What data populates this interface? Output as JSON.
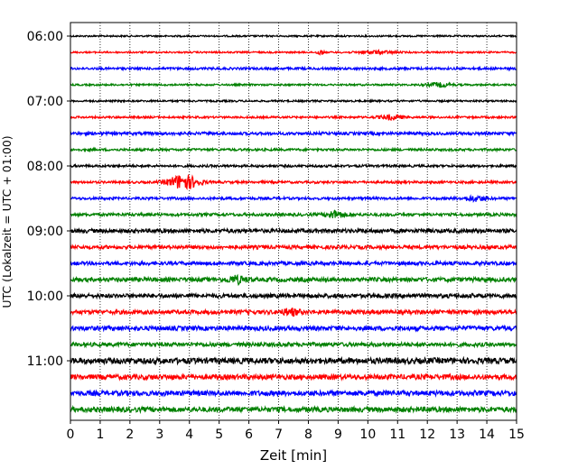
{
  "chart_data": {
    "type": "line",
    "title": "",
    "xlabel": "Zeit  [min]",
    "ylabel": "UTC (Lokalzeit = UTC + 01:00)",
    "xlim": [
      0,
      15
    ],
    "x_ticks": [
      0,
      1,
      2,
      3,
      4,
      5,
      6,
      7,
      8,
      9,
      10,
      11,
      12,
      13,
      14,
      15
    ],
    "y_ticks": [
      "06:00",
      "07:00",
      "08:00",
      "09:00",
      "10:00",
      "11:00"
    ],
    "row_interval_minutes": 15,
    "rows": [
      {
        "time": "06:00",
        "color": "#000000",
        "noise": 0.9
      },
      {
        "time": "06:15",
        "color": "#ff0000",
        "noise": 0.9,
        "events": [
          {
            "at": 8.4,
            "amp": 3,
            "width": 0.1
          },
          {
            "at": 10.3,
            "amp": 1.6,
            "width": 0.6
          }
        ]
      },
      {
        "time": "06:30",
        "color": "#0000ff",
        "noise": 1.3
      },
      {
        "time": "06:45",
        "color": "#008000",
        "noise": 1.0,
        "events": [
          {
            "at": 12.4,
            "amp": 2.2,
            "width": 0.4
          }
        ]
      },
      {
        "time": "07:00",
        "color": "#000000",
        "noise": 1.0
      },
      {
        "time": "07:15",
        "color": "#ff0000",
        "noise": 1.1,
        "events": [
          {
            "at": 10.8,
            "amp": 2.5,
            "width": 0.4
          }
        ]
      },
      {
        "time": "07:30",
        "color": "#0000ff",
        "noise": 1.6
      },
      {
        "time": "07:45",
        "color": "#008000",
        "noise": 1.3
      },
      {
        "time": "08:00",
        "color": "#000000",
        "noise": 1.3
      },
      {
        "time": "08:15",
        "color": "#ff0000",
        "noise": 1.3,
        "events": [
          {
            "at": 3.8,
            "amp": 8,
            "width": 0.5
          }
        ]
      },
      {
        "time": "08:30",
        "color": "#0000ff",
        "noise": 1.4,
        "events": [
          {
            "at": 13.6,
            "amp": 2.5,
            "width": 0.4
          }
        ]
      },
      {
        "time": "08:45",
        "color": "#008000",
        "noise": 1.6,
        "events": [
          {
            "at": 8.9,
            "amp": 4,
            "width": 0.3
          }
        ]
      },
      {
        "time": "09:00",
        "color": "#000000",
        "noise": 2.2
      },
      {
        "time": "09:15",
        "color": "#ff0000",
        "noise": 2.0
      },
      {
        "time": "09:30",
        "color": "#0000ff",
        "noise": 2.0
      },
      {
        "time": "09:45",
        "color": "#008000",
        "noise": 2.3,
        "events": [
          {
            "at": 5.6,
            "amp": 3.5,
            "width": 0.3
          }
        ]
      },
      {
        "time": "10:00",
        "color": "#000000",
        "noise": 2.3
      },
      {
        "time": "10:15",
        "color": "#ff0000",
        "noise": 2.3,
        "events": [
          {
            "at": 7.4,
            "amp": 3,
            "width": 0.3
          }
        ]
      },
      {
        "time": "10:30",
        "color": "#0000ff",
        "noise": 2.5
      },
      {
        "time": "10:45",
        "color": "#008000",
        "noise": 2.2
      },
      {
        "time": "11:00",
        "color": "#000000",
        "noise": 3.2
      },
      {
        "time": "11:15",
        "color": "#ff0000",
        "noise": 2.8
      },
      {
        "time": "11:30",
        "color": "#0000ff",
        "noise": 2.8
      },
      {
        "time": "11:45",
        "color": "#008000",
        "noise": 2.8
      }
    ]
  }
}
